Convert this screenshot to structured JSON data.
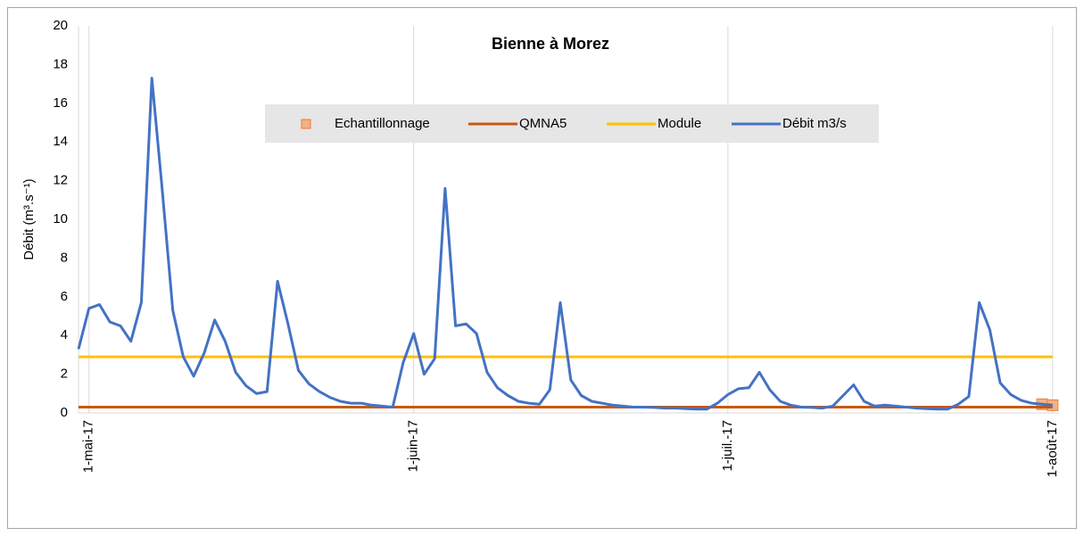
{
  "chart_data": {
    "type": "line",
    "title": "Bienne à Morez",
    "y_label": "Débit (m³.s⁻¹)",
    "categories": [
      null,
      "1-mai-17",
      null,
      null,
      null,
      null,
      null,
      null,
      null,
      null,
      null,
      null,
      null,
      null,
      null,
      null,
      null,
      null,
      null,
      null,
      null,
      null,
      null,
      null,
      null,
      null,
      null,
      null,
      null,
      null,
      null,
      null,
      "1-juin-17",
      null,
      null,
      null,
      null,
      null,
      null,
      null,
      null,
      null,
      null,
      null,
      null,
      null,
      null,
      null,
      null,
      null,
      null,
      null,
      null,
      null,
      null,
      null,
      null,
      null,
      null,
      null,
      null,
      null,
      "1-juil.-17",
      null,
      null,
      null,
      null,
      null,
      null,
      null,
      null,
      null,
      null,
      null,
      null,
      null,
      null,
      null,
      null,
      null,
      null,
      null,
      null,
      null,
      null,
      null,
      null,
      null,
      null,
      null,
      null,
      null,
      null,
      "1-août-17"
    ],
    "series": [
      {
        "name": "Echantillonnage",
        "color": "#f4b183",
        "marker": "square",
        "values": [
          null,
          null,
          null,
          null,
          null,
          null,
          null,
          null,
          null,
          null,
          null,
          null,
          null,
          null,
          null,
          null,
          null,
          null,
          null,
          null,
          null,
          null,
          null,
          null,
          null,
          null,
          null,
          null,
          null,
          null,
          null,
          null,
          null,
          null,
          null,
          null,
          null,
          null,
          null,
          null,
          null,
          null,
          null,
          null,
          null,
          null,
          null,
          null,
          null,
          null,
          null,
          null,
          null,
          null,
          null,
          null,
          null,
          null,
          null,
          null,
          null,
          null,
          null,
          null,
          null,
          null,
          null,
          null,
          null,
          null,
          null,
          null,
          null,
          null,
          null,
          null,
          null,
          null,
          null,
          null,
          null,
          null,
          null,
          null,
          null,
          null,
          null,
          null,
          null,
          null,
          null,
          null,
          0.45,
          0.4
        ]
      },
      {
        "name": "QMNA5",
        "color": "#c55a11",
        "values": [
          0.3,
          0.3,
          0.3,
          0.3,
          0.3,
          0.3,
          0.3,
          0.3,
          0.3,
          0.3,
          0.3,
          0.3,
          0.3,
          0.3,
          0.3,
          0.3,
          0.3,
          0.3,
          0.3,
          0.3,
          0.3,
          0.3,
          0.3,
          0.3,
          0.3,
          0.3,
          0.3,
          0.3,
          0.3,
          0.3,
          0.3,
          0.3,
          0.3,
          0.3,
          0.3,
          0.3,
          0.3,
          0.3,
          0.3,
          0.3,
          0.3,
          0.3,
          0.3,
          0.3,
          0.3,
          0.3,
          0.3,
          0.3,
          0.3,
          0.3,
          0.3,
          0.3,
          0.3,
          0.3,
          0.3,
          0.3,
          0.3,
          0.3,
          0.3,
          0.3,
          0.3,
          0.3,
          0.3,
          0.3,
          0.3,
          0.3,
          0.3,
          0.3,
          0.3,
          0.3,
          0.3,
          0.3,
          0.3,
          0.3,
          0.3,
          0.3,
          0.3,
          0.3,
          0.3,
          0.3,
          0.3,
          0.3,
          0.3,
          0.3,
          0.3,
          0.3,
          0.3,
          0.3,
          0.3,
          0.3,
          0.3,
          0.3,
          0.3,
          0.3
        ]
      },
      {
        "name": "Module",
        "color": "#ffc000",
        "values": [
          2.9,
          2.9,
          2.9,
          2.9,
          2.9,
          2.9,
          2.9,
          2.9,
          2.9,
          2.9,
          2.9,
          2.9,
          2.9,
          2.9,
          2.9,
          2.9,
          2.9,
          2.9,
          2.9,
          2.9,
          2.9,
          2.9,
          2.9,
          2.9,
          2.9,
          2.9,
          2.9,
          2.9,
          2.9,
          2.9,
          2.9,
          2.9,
          2.9,
          2.9,
          2.9,
          2.9,
          2.9,
          2.9,
          2.9,
          2.9,
          2.9,
          2.9,
          2.9,
          2.9,
          2.9,
          2.9,
          2.9,
          2.9,
          2.9,
          2.9,
          2.9,
          2.9,
          2.9,
          2.9,
          2.9,
          2.9,
          2.9,
          2.9,
          2.9,
          2.9,
          2.9,
          2.9,
          2.9,
          2.9,
          2.9,
          2.9,
          2.9,
          2.9,
          2.9,
          2.9,
          2.9,
          2.9,
          2.9,
          2.9,
          2.9,
          2.9,
          2.9,
          2.9,
          2.9,
          2.9,
          2.9,
          2.9,
          2.9,
          2.9,
          2.9,
          2.9,
          2.9,
          2.9,
          2.9,
          2.9,
          2.9,
          2.9,
          2.9,
          2.9
        ]
      },
      {
        "name": "Débit m3/s",
        "color": "#4472c4",
        "values": [
          3.3,
          5.4,
          5.6,
          4.7,
          4.5,
          3.7,
          5.7,
          17.3,
          11.5,
          5.3,
          2.9,
          1.9,
          3.1,
          4.8,
          3.7,
          2.1,
          1.4,
          1.0,
          1.1,
          6.8,
          4.6,
          2.2,
          1.5,
          1.1,
          0.8,
          0.6,
          0.5,
          0.5,
          0.4,
          0.35,
          0.3,
          2.6,
          4.1,
          2.0,
          2.8,
          11.6,
          4.5,
          4.6,
          4.1,
          2.1,
          1.3,
          0.9,
          0.6,
          0.5,
          0.45,
          1.2,
          5.7,
          1.7,
          0.9,
          0.6,
          0.5,
          0.4,
          0.35,
          0.3,
          0.3,
          0.28,
          0.25,
          0.25,
          0.22,
          0.2,
          0.2,
          0.5,
          0.95,
          1.25,
          1.3,
          2.1,
          1.2,
          0.6,
          0.4,
          0.3,
          0.28,
          0.25,
          0.35,
          0.9,
          1.45,
          0.6,
          0.35,
          0.4,
          0.35,
          0.3,
          0.25,
          0.22,
          0.2,
          0.2,
          0.45,
          0.85,
          5.7,
          4.3,
          1.55,
          0.95,
          0.65,
          0.5,
          0.45,
          0.4
        ]
      }
    ],
    "ylim": [
      0,
      20
    ],
    "yticks": [
      0,
      2,
      4,
      6,
      8,
      10,
      12,
      14,
      16,
      18,
      20
    ],
    "grid": "x",
    "legend": "top"
  }
}
